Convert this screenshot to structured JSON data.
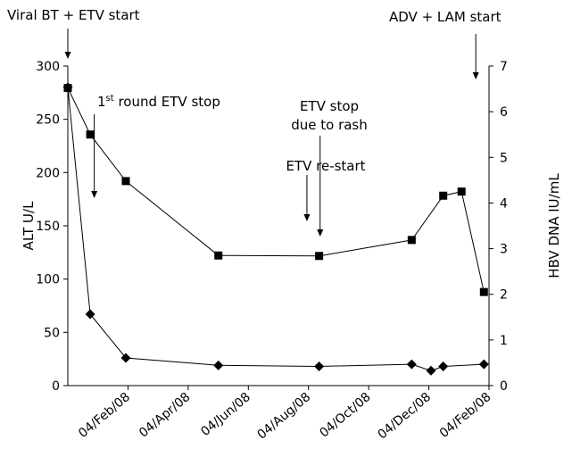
{
  "chart_data": {
    "type": "line",
    "title": "",
    "xlabel": "",
    "x_ticks": [
      "04/Feb/08",
      "04/Apr/08",
      "04/Jun/08",
      "04/Aug/08",
      "04/Oct/08",
      "04/Dec/08",
      "04/Feb/08"
    ],
    "y_left": {
      "label": "ALT U/L",
      "ticks": [
        "0",
        "50",
        "100",
        "150",
        "200",
        "250",
        "300"
      ],
      "ylim": [
        0,
        300
      ]
    },
    "y_right": {
      "label": "HBV DNA IU/mL",
      "ticks": [
        "0",
        "1",
        "2",
        "3",
        "4",
        "5",
        "6",
        "7"
      ],
      "ylim": [
        0,
        7
      ]
    },
    "series": [
      {
        "name": "",
        "axis": "right",
        "marker": "square",
        "points": [
          [
            "2008-02-04",
            6.52
          ],
          [
            "2008-02-26",
            5.5
          ],
          [
            "2008-04-01",
            4.48
          ],
          [
            "2008-07-01",
            2.85
          ],
          [
            "2008-10-08",
            2.84
          ],
          [
            "2009-01-07",
            3.19
          ],
          [
            "2009-02-07",
            4.16
          ],
          [
            "2009-02-25",
            4.25
          ],
          [
            "2009-03-19",
            2.05
          ]
        ]
      },
      {
        "name": "",
        "axis": "left",
        "marker": "diamond",
        "points": [
          [
            "2008-02-04",
            280
          ],
          [
            "2008-02-26",
            67
          ],
          [
            "2008-04-01",
            26
          ],
          [
            "2008-07-01",
            19
          ],
          [
            "2008-10-08",
            18
          ],
          [
            "2009-01-07",
            20
          ],
          [
            "2009-01-26",
            14
          ],
          [
            "2009-02-07",
            18
          ],
          [
            "2009-03-19",
            20
          ]
        ]
      }
    ],
    "annotations": [
      {
        "id": "viral-bt",
        "lines": [
          "Viral BT + ETV start"
        ],
        "date": "2008-02-04"
      },
      {
        "id": "first-round-stop",
        "sup_prefix": "1",
        "sup": "st",
        "lines": [
          " round ETV stop"
        ],
        "date": "2008-03-01"
      },
      {
        "id": "etv-restart",
        "lines": [
          "ETV re-start"
        ],
        "date": "2008-09-26"
      },
      {
        "id": "etv-stop-rash",
        "lines": [
          "ETV stop",
          "due to rash"
        ],
        "date": "2008-10-09"
      },
      {
        "id": "adv-lam-start",
        "lines": [
          "ADV + LAM start"
        ],
        "date": "2009-03-11"
      }
    ]
  }
}
